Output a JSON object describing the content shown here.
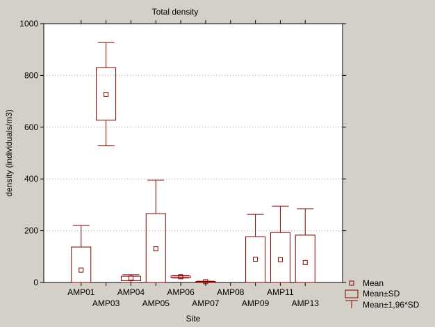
{
  "chart_data": {
    "type": "box",
    "title": "Total density",
    "xlabel": "Site",
    "ylabel": "density (individuals/m3)",
    "ylim": [
      0,
      1000
    ],
    "yticks": [
      0,
      200,
      400,
      600,
      800,
      1000
    ],
    "grid": "horizontal dotted",
    "categories": [
      "AMP01",
      "AMP03",
      "AMP04",
      "AMP05",
      "AMP06",
      "AMP07",
      "AMP08",
      "AMP09",
      "AMP11",
      "AMP13"
    ],
    "series": [
      {
        "name": "AMP01",
        "mean": 48,
        "sd_low": 0,
        "sd_high": 137,
        "ci_low": 0,
        "ci_high": 220
      },
      {
        "name": "AMP03",
        "mean": 727,
        "sd_low": 627,
        "sd_high": 830,
        "ci_low": 528,
        "ci_high": 927
      },
      {
        "name": "AMP04",
        "mean": 17,
        "sd_low": 7,
        "sd_high": 24,
        "ci_low": 0,
        "ci_high": 30
      },
      {
        "name": "AMP05",
        "mean": 130,
        "sd_low": 0,
        "sd_high": 266,
        "ci_low": 0,
        "ci_high": 395
      },
      {
        "name": "AMP06",
        "mean": 22,
        "sd_low": 19,
        "sd_high": 25,
        "ci_low": 17,
        "ci_high": 27
      },
      {
        "name": "AMP07",
        "mean": 3,
        "sd_low": 1,
        "sd_high": 4,
        "ci_low": 0,
        "ci_high": 5
      },
      {
        "name": "AMP08",
        "mean": 0,
        "sd_low": 0,
        "sd_high": 0,
        "ci_low": 0,
        "ci_high": 0
      },
      {
        "name": "AMP09",
        "mean": 90,
        "sd_low": 0,
        "sd_high": 177,
        "ci_low": 0,
        "ci_high": 263
      },
      {
        "name": "AMP11",
        "mean": 88,
        "sd_low": 0,
        "sd_high": 193,
        "ci_low": 0,
        "ci_high": 295
      },
      {
        "name": "AMP13",
        "mean": 77,
        "sd_low": 0,
        "sd_high": 183,
        "ci_low": 0,
        "ci_high": 285
      }
    ],
    "legend": {
      "placement": "bottom-right",
      "entries": [
        "Mean",
        "Mean±SD",
        "Mean±1,96*SD"
      ]
    }
  },
  "colors": {
    "background": "#d4d0c8",
    "plot_area": "#ffffff",
    "series": "#800000",
    "grid": "#a0a0a0"
  }
}
